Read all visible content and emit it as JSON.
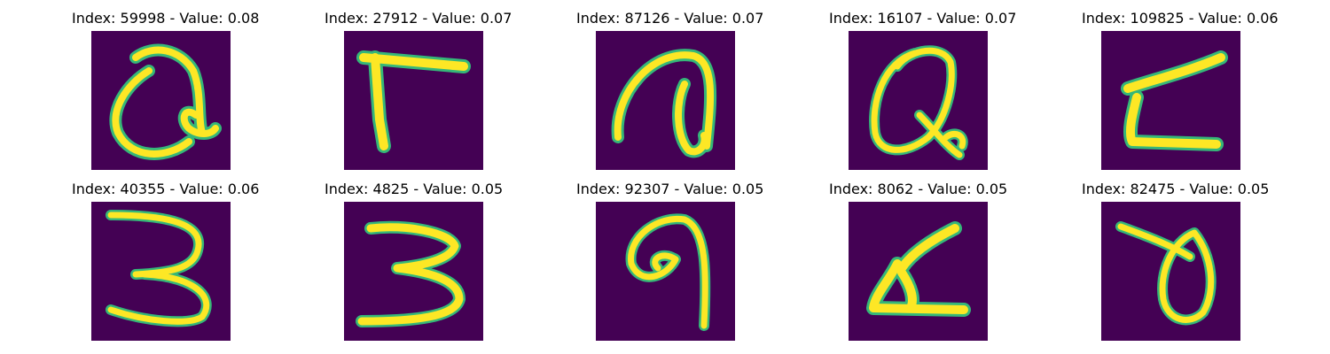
{
  "panels": [
    {
      "title": "Index: 59998 - Value: 0.08",
      "glyph": "handwritten-digit-image",
      "cmap": "viridis"
    },
    {
      "title": "Index: 27912 - Value: 0.07",
      "glyph": "handwritten-digit-image",
      "cmap": "viridis"
    },
    {
      "title": "Index: 87126 - Value: 0.07",
      "glyph": "handwritten-digit-image",
      "cmap": "viridis"
    },
    {
      "title": "Index: 16107 - Value: 0.07",
      "glyph": "handwritten-digit-image",
      "cmap": "viridis"
    },
    {
      "title": "Index: 109825 - Value: 0.06",
      "glyph": "handwritten-digit-image",
      "cmap": "viridis"
    },
    {
      "title": "Index: 40355 - Value: 0.06",
      "glyph": "handwritten-digit-image",
      "cmap": "viridis"
    },
    {
      "title": "Index: 4825 - Value: 0.05",
      "glyph": "handwritten-digit-image",
      "cmap": "viridis"
    },
    {
      "title": "Index: 92307 - Value: 0.05",
      "glyph": "handwritten-digit-image",
      "cmap": "viridis"
    },
    {
      "title": "Index: 8062 - Value: 0.05",
      "glyph": "handwritten-digit-image",
      "cmap": "viridis"
    },
    {
      "title": "Index: 82475 - Value: 0.05",
      "glyph": "handwritten-digit-image",
      "cmap": "viridis"
    }
  ],
  "colors": {
    "background": "#440154",
    "edge": "#35b779",
    "stroke": "#fde725"
  }
}
